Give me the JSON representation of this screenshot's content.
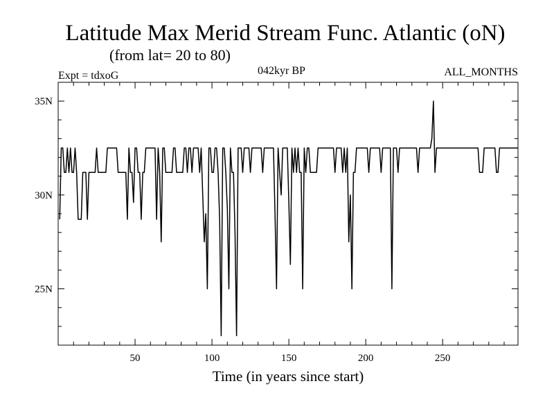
{
  "chart_data": {
    "type": "line",
    "title": "Latitude Max Merid Stream Func. Atlantic (oN)",
    "subtitle": "(from lat= 20 to 80)",
    "left_label": "Expt = tdxoG",
    "center_label": "042kyr BP",
    "right_label": "ALL_MONTHS",
    "xlabel": "Time (in years since start)",
    "ylabel": "",
    "xlim": [
      0,
      299
    ],
    "ylim": [
      22,
      36
    ],
    "x_ticks": [
      {
        "value": 50,
        "label": "50"
      },
      {
        "value": 100,
        "label": "100"
      },
      {
        "value": 150,
        "label": "150"
      },
      {
        "value": 200,
        "label": "200"
      },
      {
        "value": 250,
        "label": "250"
      }
    ],
    "y_ticks": [
      {
        "value": 25,
        "label": "25N"
      },
      {
        "value": 30,
        "label": "30N"
      },
      {
        "value": 35,
        "label": "35N"
      }
    ],
    "series": [
      {
        "color": "#000000",
        "x": [
          1,
          2,
          3,
          4,
          5,
          6,
          7,
          8,
          9,
          10,
          11,
          12,
          13,
          14,
          15,
          16,
          17,
          18,
          19,
          20,
          21,
          22,
          23,
          24,
          25,
          26,
          27,
          28,
          29,
          30,
          31,
          32,
          33,
          34,
          35,
          36,
          37,
          38,
          39,
          40,
          41,
          42,
          43,
          44,
          45,
          46,
          47,
          48,
          49,
          50,
          51,
          52,
          53,
          54,
          55,
          56,
          57,
          58,
          59,
          60,
          61,
          62,
          63,
          64,
          65,
          66,
          67,
          68,
          69,
          70,
          71,
          72,
          73,
          74,
          75,
          76,
          77,
          78,
          79,
          80,
          81,
          82,
          83,
          84,
          85,
          86,
          87,
          88,
          89,
          90,
          91,
          92,
          93,
          94,
          95,
          96,
          97,
          98,
          99,
          100,
          101,
          102,
          103,
          104,
          105,
          106,
          107,
          108,
          109,
          110,
          111,
          112,
          113,
          114,
          115,
          116,
          117,
          118,
          119,
          120,
          121,
          122,
          123,
          124,
          125,
          126,
          127,
          128,
          129,
          130,
          131,
          132,
          133,
          134,
          135,
          136,
          137,
          138,
          139,
          140,
          141,
          142,
          143,
          144,
          145,
          146,
          147,
          148,
          149,
          150,
          151,
          152,
          153,
          154,
          155,
          156,
          157,
          158,
          159,
          160,
          161,
          162,
          163,
          164,
          165,
          166,
          167,
          168,
          169,
          170,
          171,
          172,
          173,
          174,
          175,
          176,
          177,
          178,
          179,
          180,
          181,
          182,
          183,
          184,
          185,
          186,
          187,
          188,
          189,
          190,
          191,
          192,
          193,
          194,
          195,
          196,
          197,
          198,
          199,
          200,
          201,
          202,
          203,
          204,
          205,
          206,
          207,
          208,
          209,
          210,
          211,
          212,
          213,
          214,
          215,
          216,
          217,
          218,
          219,
          220,
          221,
          222,
          223,
          224,
          225,
          226,
          227,
          228,
          229,
          230,
          231,
          232,
          233,
          234,
          235,
          236,
          237,
          238,
          239,
          240,
          241,
          242,
          243,
          244,
          245,
          246,
          247,
          248,
          249,
          250,
          251,
          252,
          253,
          254,
          255,
          256,
          257,
          258,
          259,
          260,
          261,
          262,
          263,
          264,
          265,
          266,
          267,
          268,
          269,
          270,
          271,
          272,
          273,
          274,
          275,
          276,
          277,
          278,
          279,
          280,
          281,
          282,
          283,
          284,
          285,
          286,
          287,
          288,
          289,
          290,
          291,
          292,
          293,
          294,
          295,
          296,
          297,
          298,
          299
        ],
        "y": [
          28.7,
          32.5,
          32.5,
          31.2,
          31.2,
          32.5,
          31.2,
          32.5,
          31.2,
          31.2,
          32.5,
          31.2,
          28.7,
          28.7,
          28.7,
          31.2,
          31.2,
          31.2,
          28.7,
          31.2,
          31.2,
          31.2,
          31.2,
          31.2,
          32.5,
          31.2,
          31.2,
          31.2,
          31.2,
          31.2,
          31.2,
          32.5,
          32.5,
          32.5,
          32.5,
          32.5,
          32.5,
          32.5,
          31.2,
          31.2,
          31.2,
          31.2,
          31.2,
          31.2,
          28.7,
          32.5,
          31.2,
          31.2,
          29.6,
          32.5,
          32.5,
          31.2,
          31.2,
          28.7,
          31.2,
          31.2,
          32.5,
          32.5,
          32.5,
          32.5,
          32.5,
          32.5,
          32.5,
          28.7,
          32.5,
          31.2,
          27.5,
          32.5,
          32.5,
          31.2,
          31.2,
          31.2,
          31.2,
          31.2,
          32.5,
          32.5,
          31.2,
          31.2,
          31.2,
          31.2,
          31.2,
          32.5,
          32.5,
          31.2,
          32.5,
          32.5,
          31.2,
          32.5,
          32.5,
          32.5,
          32.5,
          31.2,
          32.5,
          30.0,
          27.5,
          29.0,
          25.0,
          32.5,
          32.5,
          31.2,
          31.2,
          32.5,
          32.5,
          31.2,
          28.7,
          22.5,
          32.5,
          32.5,
          31.2,
          29.3,
          25.0,
          32.5,
          31.2,
          31.2,
          28.0,
          22.5,
          32.5,
          32.5,
          32.5,
          31.2,
          32.5,
          32.5,
          32.5,
          32.5,
          31.2,
          32.5,
          32.5,
          32.5,
          32.5,
          32.5,
          32.5,
          32.5,
          31.2,
          32.5,
          32.5,
          32.5,
          32.5,
          32.5,
          32.5,
          32.5,
          29.0,
          25.0,
          32.5,
          31.2,
          30.0,
          32.5,
          32.5,
          32.5,
          32.5,
          29.6,
          26.3,
          32.5,
          31.2,
          32.5,
          31.2,
          32.5,
          31.2,
          31.2,
          25.0,
          32.5,
          31.2,
          32.5,
          32.5,
          31.2,
          31.2,
          31.2,
          31.2,
          31.2,
          32.5,
          32.5,
          32.5,
          32.5,
          32.5,
          32.5,
          32.5,
          32.5,
          32.5,
          32.5,
          32.5,
          31.2,
          32.5,
          32.5,
          32.5,
          32.5,
          31.2,
          32.5,
          31.2,
          32.5,
          27.5,
          30.0,
          25.0,
          31.2,
          31.2,
          32.5,
          32.5,
          32.5,
          32.5,
          32.5,
          32.5,
          32.5,
          32.5,
          31.2,
          32.5,
          32.5,
          32.5,
          32.5,
          32.5,
          32.5,
          32.5,
          31.2,
          32.5,
          32.5,
          32.5,
          32.5,
          32.5,
          32.5,
          25.0,
          32.5,
          32.5,
          32.5,
          31.2,
          32.5,
          32.5,
          32.5,
          32.5,
          32.5,
          32.5,
          32.5,
          32.5,
          32.5,
          32.5,
          32.5,
          32.5,
          31.2,
          32.5,
          32.5,
          32.5,
          32.5,
          32.5,
          32.5,
          32.5,
          32.5,
          33.0,
          35.0,
          31.2,
          32.5,
          32.5,
          32.5,
          32.5,
          32.5,
          32.5,
          32.5,
          32.5,
          32.5,
          32.5,
          32.5,
          32.5,
          32.5,
          32.5,
          32.5,
          32.5,
          32.5,
          32.5,
          32.5,
          32.5,
          32.5,
          32.5,
          32.5,
          32.5,
          32.5,
          32.5,
          32.5,
          32.5,
          31.2,
          31.2,
          31.2,
          32.5,
          32.5,
          32.5,
          32.5,
          32.5,
          32.5,
          32.5,
          32.5,
          31.2,
          31.2,
          32.5,
          32.5,
          32.5,
          32.5,
          32.5,
          32.5,
          32.5,
          32.5,
          32.5,
          32.5,
          32.5,
          32.5,
          32.5
        ]
      }
    ]
  }
}
